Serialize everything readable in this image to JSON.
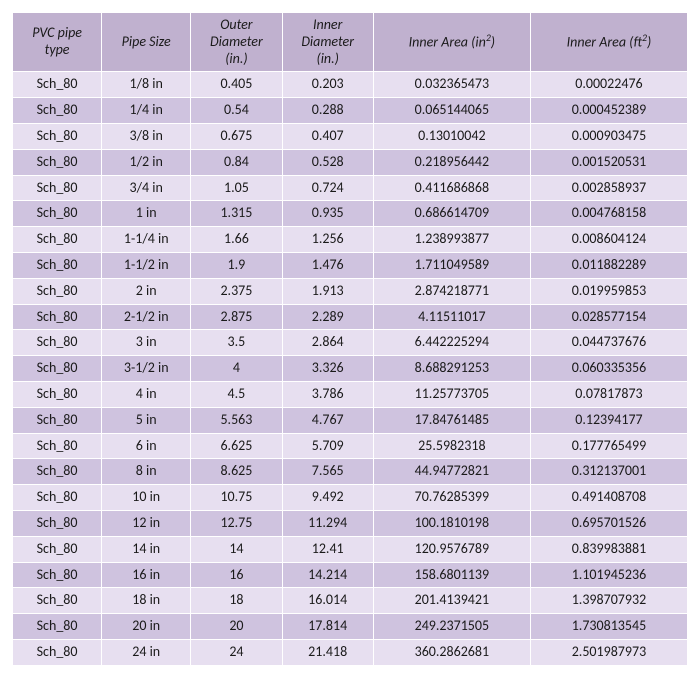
{
  "colors": {
    "header_bg": "#c0b1cf",
    "row_odd_bg": "#e7dff0",
    "row_even_bg": "#cfc3df",
    "border": "#ffffff",
    "text": "#1a1a1a"
  },
  "headers": {
    "type": "PVC pipe type",
    "size": "Pipe Size",
    "od_line1": "Outer",
    "od_line2": "Diameter",
    "od_line3": "(in.)",
    "id_line1": "Inner",
    "id_line2": "Diameter",
    "id_line3": "(in.)",
    "area_in_prefix": "Inner Area (in",
    "area_in_suffix": ")",
    "area_ft_prefix": "Inner Area (ft",
    "area_ft_suffix": ")",
    "sup": "2"
  },
  "rows": [
    {
      "type": "Sch_80",
      "size": "1/8 in",
      "od": "0.405",
      "idv": "0.203",
      "ain": "0.032365473",
      "aft": "0.00022476"
    },
    {
      "type": "Sch_80",
      "size": "1/4 in",
      "od": "0.54",
      "idv": "0.288",
      "ain": "0.065144065",
      "aft": "0.000452389"
    },
    {
      "type": "Sch_80",
      "size": "3/8 in",
      "od": "0.675",
      "idv": "0.407",
      "ain": "0.13010042",
      "aft": "0.000903475"
    },
    {
      "type": "Sch_80",
      "size": "1/2 in",
      "od": "0.84",
      "idv": "0.528",
      "ain": "0.218956442",
      "aft": "0.001520531"
    },
    {
      "type": "Sch_80",
      "size": "3/4 in",
      "od": "1.05",
      "idv": "0.724",
      "ain": "0.411686868",
      "aft": "0.002858937"
    },
    {
      "type": "Sch_80",
      "size": "1 in",
      "od": "1.315",
      "idv": "0.935",
      "ain": "0.686614709",
      "aft": "0.004768158"
    },
    {
      "type": "Sch_80",
      "size": "1-1/4 in",
      "od": "1.66",
      "idv": "1.256",
      "ain": "1.238993877",
      "aft": "0.008604124"
    },
    {
      "type": "Sch_80",
      "size": "1-1/2 in",
      "od": "1.9",
      "idv": "1.476",
      "ain": "1.711049589",
      "aft": "0.011882289"
    },
    {
      "type": "Sch_80",
      "size": "2 in",
      "od": "2.375",
      "idv": "1.913",
      "ain": "2.874218771",
      "aft": "0.019959853"
    },
    {
      "type": "Sch_80",
      "size": "2-1/2 in",
      "od": "2.875",
      "idv": "2.289",
      "ain": "4.11511017",
      "aft": "0.028577154"
    },
    {
      "type": "Sch_80",
      "size": "3 in",
      "od": "3.5",
      "idv": "2.864",
      "ain": "6.442225294",
      "aft": "0.044737676"
    },
    {
      "type": "Sch_80",
      "size": "3-1/2 in",
      "od": "4",
      "idv": "3.326",
      "ain": "8.688291253",
      "aft": "0.060335356"
    },
    {
      "type": "Sch_80",
      "size": "4 in",
      "od": "4.5",
      "idv": "3.786",
      "ain": "11.25773705",
      "aft": "0.07817873"
    },
    {
      "type": "Sch_80",
      "size": "5 in",
      "od": "5.563",
      "idv": "4.767",
      "ain": "17.84761485",
      "aft": "0.12394177"
    },
    {
      "type": "Sch_80",
      "size": "6 in",
      "od": "6.625",
      "idv": "5.709",
      "ain": "25.5982318",
      "aft": "0.177765499"
    },
    {
      "type": "Sch_80",
      "size": "8 in",
      "od": "8.625",
      "idv": "7.565",
      "ain": "44.94772821",
      "aft": "0.312137001"
    },
    {
      "type": "Sch_80",
      "size": "10 in",
      "od": "10.75",
      "idv": "9.492",
      "ain": "70.76285399",
      "aft": "0.491408708"
    },
    {
      "type": "Sch_80",
      "size": "12 in",
      "od": "12.75",
      "idv": "11.294",
      "ain": "100.1810198",
      "aft": "0.695701526"
    },
    {
      "type": "Sch_80",
      "size": "14 in",
      "od": "14",
      "idv": "12.41",
      "ain": "120.9576789",
      "aft": "0.839983881"
    },
    {
      "type": "Sch_80",
      "size": "16 in",
      "od": "16",
      "idv": "14.214",
      "ain": "158.6801139",
      "aft": "1.101945236"
    },
    {
      "type": "Sch_80",
      "size": "18 in",
      "od": "18",
      "idv": "16.014",
      "ain": "201.4139421",
      "aft": "1.398707932"
    },
    {
      "type": "Sch_80",
      "size": "20 in",
      "od": "20",
      "idv": "17.814",
      "ain": "249.2371505",
      "aft": "1.730813545"
    },
    {
      "type": "Sch_80",
      "size": "24 in",
      "od": "24",
      "idv": "21.418",
      "ain": "360.2862681",
      "aft": "2.501987973"
    }
  ]
}
